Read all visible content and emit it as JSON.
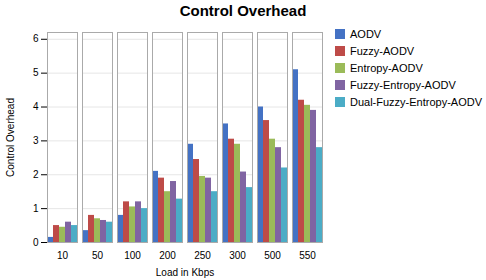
{
  "chart_data": {
    "type": "bar",
    "title": "Control Overhead",
    "xlabel": "Load in Kbps",
    "ylabel": "Control Overhead",
    "categories": [
      "10",
      "50",
      "100",
      "200",
      "250",
      "300",
      "500",
      "550"
    ],
    "series": [
      {
        "name": "AODV",
        "color": "#4472C4",
        "values": [
          0.15,
          0.35,
          0.8,
          2.1,
          2.9,
          3.5,
          4.0,
          5.1
        ]
      },
      {
        "name": "Fuzzy-AODV",
        "color": "#BE4B48",
        "values": [
          0.5,
          0.8,
          1.2,
          1.9,
          2.45,
          3.05,
          3.6,
          4.2
        ]
      },
      {
        "name": "Entropy-AODV",
        "color": "#9BBB59",
        "values": [
          0.45,
          0.7,
          1.05,
          1.5,
          1.95,
          2.9,
          3.05,
          4.05
        ]
      },
      {
        "name": "Fuzzy-Entropy-AODV",
        "color": "#8064A2",
        "values": [
          0.6,
          0.65,
          1.2,
          1.8,
          1.9,
          2.08,
          2.8,
          3.9
        ]
      },
      {
        "name": "Dual-Fuzzy-Entropy-AODV",
        "color": "#4BACC6",
        "values": [
          0.5,
          0.6,
          1.0,
          1.28,
          1.5,
          1.62,
          2.2,
          2.8
        ]
      }
    ],
    "ylim": [
      0,
      6.2
    ],
    "yticks": [
      0,
      1,
      2,
      3,
      4,
      5,
      6
    ],
    "grid": true,
    "legend": "right"
  }
}
